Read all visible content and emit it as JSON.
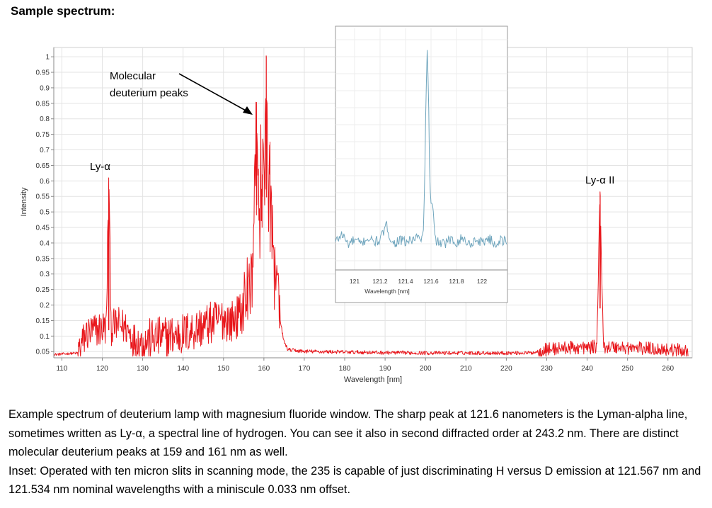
{
  "heading": "Sample spectrum:",
  "chart_data": [
    {
      "type": "line",
      "ylabel": "Intensity",
      "xlabel": "Wavelength [nm]",
      "xlim": [
        108,
        266
      ],
      "ylim": [
        0.03,
        1.03
      ],
      "x_ticks": [
        110,
        120,
        130,
        140,
        150,
        160,
        170,
        180,
        190,
        200,
        210,
        220,
        230,
        240,
        250,
        260
      ],
      "y_ticks": [
        "1",
        "0.95",
        "0.9",
        "0.85",
        "0.8",
        "0.75",
        "0.7",
        "0.65",
        "0.6",
        "0.55",
        "0.5",
        "0.45",
        "0.4",
        "0.35",
        "0.3",
        "0.25",
        "0.2",
        "0.15",
        "0.1",
        "0.05"
      ],
      "grid": true,
      "series_color": "#e8161b",
      "series": [
        {
          "x": [
            108,
            114,
            115,
            116,
            118,
            120,
            121.0,
            121.6,
            122.2,
            124,
            126,
            128,
            130,
            133,
            136,
            140,
            144,
            148,
            150,
            152,
            154,
            156,
            157,
            158.2,
            159.0,
            159.6,
            160.2,
            160.6,
            161.0,
            161.5,
            162.2,
            163,
            164,
            165,
            166,
            170,
            180,
            190,
            200,
            210,
            220,
            226,
            230,
            235,
            240,
            242.4,
            243.2,
            244.0,
            250,
            255,
            260,
            265
          ],
          "y": [
            0.04,
            0.045,
            0.07,
            0.1,
            0.11,
            0.12,
            0.12,
            0.61,
            0.12,
            0.13,
            0.12,
            0.08,
            0.075,
            0.085,
            0.09,
            0.1,
            0.12,
            0.14,
            0.15,
            0.14,
            0.16,
            0.2,
            0.24,
            0.74,
            0.45,
            0.62,
            0.55,
            1.0,
            0.5,
            0.62,
            0.33,
            0.25,
            0.15,
            0.08,
            0.055,
            0.05,
            0.048,
            0.046,
            0.045,
            0.045,
            0.045,
            0.045,
            0.055,
            0.06,
            0.06,
            0.065,
            0.565,
            0.065,
            0.06,
            0.058,
            0.055,
            0.05
          ]
        }
      ],
      "annotations": [
        {
          "text": "Ly-α",
          "x": 121.6
        },
        {
          "text": "Molecular",
          "x": 159
        },
        {
          "text": "deuterium peaks",
          "x": 159
        },
        {
          "text": "Ly-α II",
          "x": 243.2
        }
      ]
    },
    {
      "type": "line",
      "xlabel": "Wavelength [nm]",
      "xlim": [
        120.85,
        122.2
      ],
      "ylim": [
        0,
        1.03
      ],
      "x_ticks": [
        "121",
        "121.2",
        "121.4",
        "121.6",
        "121.8",
        "122"
      ],
      "grid": true,
      "series_color": "#6fa5bd",
      "series": [
        {
          "x": [
            120.85,
            120.9,
            120.95,
            121.0,
            121.05,
            121.1,
            121.15,
            121.2,
            121.25,
            121.3,
            121.35,
            121.4,
            121.45,
            121.5,
            121.52,
            121.54,
            121.55,
            121.56,
            121.57,
            121.58,
            121.59,
            121.6,
            121.61,
            121.62,
            121.63,
            121.65,
            121.7,
            121.75,
            121.8,
            121.85,
            121.9,
            121.95,
            122.0,
            122.05,
            122.1,
            122.15,
            122.2
          ],
          "y": [
            0.06,
            0.1,
            0.05,
            0.07,
            0.05,
            0.08,
            0.06,
            0.07,
            0.14,
            0.05,
            0.07,
            0.06,
            0.07,
            0.09,
            0.05,
            0.12,
            0.35,
            0.75,
            1.0,
            0.8,
            0.35,
            0.25,
            0.25,
            0.2,
            0.08,
            0.06,
            0.05,
            0.07,
            0.06,
            0.08,
            0.05,
            0.07,
            0.06,
            0.08,
            0.05,
            0.07,
            0.06
          ]
        }
      ]
    }
  ],
  "caption": {
    "p1": "Example spectrum of deuterium lamp with magnesium fluoride window. The sharp peak at 121.6 nanometers is the Lyman-alpha line, sometimes written as Ly-α, a spectral line of hydrogen. You can see it also in second diffracted order at 243.2 nm. There are distinct molecular deuterium peaks at 159 and 161 nm as well.",
    "p2": "Inset: Operated with ten micron slits in scanning mode, the 235 is capable of just discriminating H versus D emission at 121.567 nm and 121.534 nm nominal wavelengths with a miniscule 0.033 nm offset."
  }
}
